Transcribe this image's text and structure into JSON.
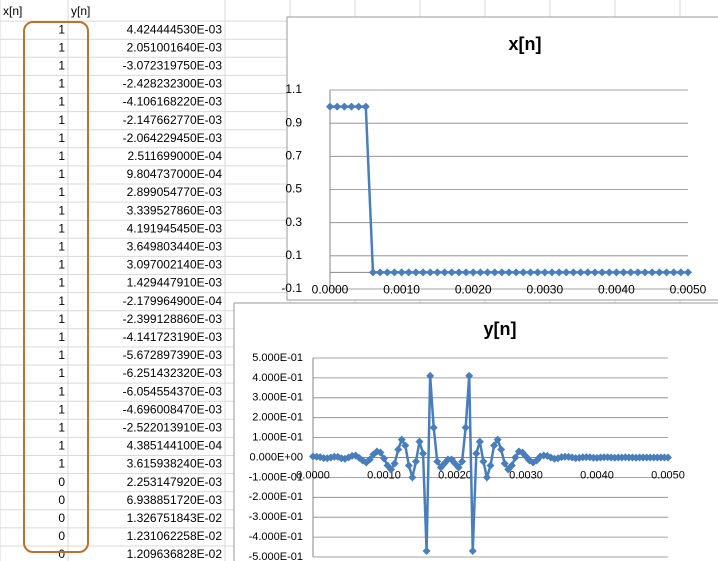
{
  "sheet": {
    "header": [
      "x[n]",
      "y[n]"
    ],
    "rows": [
      [
        "1",
        "4.424444530E-03"
      ],
      [
        "1",
        "2.051001640E-03"
      ],
      [
        "1",
        "-3.072319750E-03"
      ],
      [
        "1",
        "-2.428232300E-03"
      ],
      [
        "1",
        "-4.106168220E-03"
      ],
      [
        "1",
        "-2.147662770E-03"
      ],
      [
        "1",
        "-2.064229450E-03"
      ],
      [
        "1",
        "2.511699000E-04"
      ],
      [
        "1",
        "9.804737000E-04"
      ],
      [
        "1",
        "2.899054770E-03"
      ],
      [
        "1",
        "3.339527860E-03"
      ],
      [
        "1",
        "4.191945450E-03"
      ],
      [
        "1",
        "3.649803440E-03"
      ],
      [
        "1",
        "3.097002140E-03"
      ],
      [
        "1",
        "1.429447910E-03"
      ],
      [
        "1",
        "-2.179964900E-04"
      ],
      [
        "1",
        "-2.399128860E-03"
      ],
      [
        "1",
        "-4.141723190E-03"
      ],
      [
        "1",
        "-5.672897390E-03"
      ],
      [
        "1",
        "-6.251432320E-03"
      ],
      [
        "1",
        "-6.054554370E-03"
      ],
      [
        "1",
        "-4.696008470E-03"
      ],
      [
        "1",
        "-2.522013910E-03"
      ],
      [
        "1",
        "4.385144100E-04"
      ],
      [
        "1",
        "3.615938240E-03"
      ],
      [
        "0",
        "2.253147920E-03"
      ],
      [
        "0",
        "6.938851720E-03"
      ],
      [
        "0",
        "1.326751843E-02"
      ],
      [
        "0",
        "1.231062258E-02"
      ],
      [
        "0",
        "1.209636828E-02"
      ]
    ]
  },
  "chart_data": [
    {
      "type": "line",
      "title": "x[n]",
      "marker": "diamond",
      "grid": true,
      "x": [
        0,
        0.0001,
        0.0002,
        0.0003,
        0.0004,
        0.0005,
        0.0006,
        0.0007,
        0.0008,
        0.0009,
        0.001,
        0.0011,
        0.0012,
        0.0013,
        0.0014,
        0.0015,
        0.0016,
        0.0017,
        0.0018,
        0.0019,
        0.002,
        0.0021,
        0.0022,
        0.0023,
        0.0024,
        0.0025,
        0.0026,
        0.0027,
        0.0028,
        0.0029,
        0.003,
        0.0031,
        0.0032,
        0.0033,
        0.0034,
        0.0035,
        0.0036,
        0.0037,
        0.0038,
        0.0039,
        0.004,
        0.0041,
        0.0042,
        0.0043,
        0.0044,
        0.0045,
        0.0046,
        0.0047,
        0.0048,
        0.0049,
        0.005
      ],
      "series": [
        {
          "color": "#4a7ebb",
          "values": [
            1,
            1,
            1,
            1,
            1,
            1,
            0,
            0,
            0,
            0,
            0,
            0,
            0,
            0,
            0,
            0,
            0,
            0,
            0,
            0,
            0,
            0,
            0,
            0,
            0,
            0,
            0,
            0,
            0,
            0,
            0,
            0,
            0,
            0,
            0,
            0,
            0,
            0,
            0,
            0,
            0,
            0,
            0,
            0,
            0,
            0,
            0,
            0,
            0,
            0,
            0
          ]
        }
      ],
      "xlim": [
        0,
        0.005
      ],
      "ylim": [
        -0.1,
        1.1
      ],
      "xticks": [
        {
          "value": 0,
          "label": "0.0000"
        },
        {
          "value": 0.001,
          "label": "0.0010"
        },
        {
          "value": 0.002,
          "label": "0.0020"
        },
        {
          "value": 0.003,
          "label": "0.0030"
        },
        {
          "value": 0.004,
          "label": "0.0040"
        },
        {
          "value": 0.005,
          "label": "0.0050"
        }
      ],
      "yticks": [
        -0.1,
        0.1,
        0.3,
        0.5,
        0.7,
        0.9,
        1.1
      ]
    },
    {
      "type": "line",
      "title": "y[n]",
      "marker": "diamond",
      "grid": true,
      "x": [
        0,
        5e-05,
        0.0001,
        0.00015,
        0.0002,
        0.00025,
        0.0003,
        0.00035,
        0.0004,
        0.00045,
        0.0005,
        0.00055,
        0.0006,
        0.00065,
        0.0007,
        0.00075,
        0.0008,
        0.00085,
        0.0009,
        0.00095,
        0.001,
        0.00105,
        0.0011,
        0.00115,
        0.0012,
        0.00125,
        0.0013,
        0.00135,
        0.0014,
        0.00145,
        0.0015,
        0.00155,
        0.0016,
        0.00165,
        0.0017,
        0.00175,
        0.0018,
        0.00185,
        0.0019,
        0.00195,
        0.002,
        0.00205,
        0.0021,
        0.00215,
        0.0022,
        0.00225,
        0.0023,
        0.00235,
        0.0024,
        0.00245,
        0.0025,
        0.00255,
        0.0026,
        0.00265,
        0.0027,
        0.00275,
        0.0028,
        0.00285,
        0.0029,
        0.00295,
        0.003,
        0.00305,
        0.0031,
        0.00315,
        0.0032,
        0.00325,
        0.0033,
        0.00335,
        0.0034,
        0.00345,
        0.0035,
        0.00355,
        0.0036,
        0.00365,
        0.0037,
        0.00375,
        0.0038,
        0.00385,
        0.0039,
        0.00395,
        0.004,
        0.00405,
        0.0041,
        0.00415,
        0.0042,
        0.00425,
        0.0043,
        0.00435,
        0.0044,
        0.00445,
        0.0045,
        0.00455,
        0.0046,
        0.00465,
        0.0047,
        0.00475,
        0.0048,
        0.00485,
        0.0049,
        0.00495,
        0.005
      ],
      "series": [
        {
          "color": "#4a7ebb",
          "values": [
            0.005,
            0.004,
            0.002,
            -0.003,
            -0.004,
            0,
            0.004,
            0.003,
            -0.004,
            -0.006,
            0,
            0.008,
            0.01,
            -0.002,
            -0.015,
            -0.025,
            -0.01,
            0.015,
            0.03,
            0.025,
            -0.005,
            -0.04,
            -0.06,
            -0.03,
            0.04,
            0.09,
            0.06,
            -0.04,
            -0.1,
            -0.02,
            0.08,
            0.02,
            -0.47,
            0.41,
            0.15,
            -0.02,
            -0.05,
            -0.03,
            -0.01,
            -0.01,
            -0.03,
            -0.05,
            -0.02,
            0.15,
            0.41,
            -0.47,
            0.02,
            0.08,
            -0.02,
            -0.1,
            -0.04,
            0.06,
            0.09,
            0.04,
            -0.03,
            -0.06,
            -0.04,
            0,
            0.03,
            0.025,
            0.005,
            -0.015,
            -0.025,
            -0.015,
            0.005,
            0.01,
            0.008,
            0,
            -0.006,
            -0.004,
            0.002,
            0.004,
            0.003,
            0,
            -0.003,
            -0.002,
            0.001,
            0.002,
            0.001,
            -0.001,
            -0.002,
            0,
            0.001,
            0.001,
            0,
            -0.001,
            0,
            0,
            0.001,
            0,
            0,
            -0.001,
            0,
            0,
            0,
            0,
            0,
            0,
            0,
            0,
            0
          ]
        }
      ],
      "xlim": [
        0,
        0.005
      ],
      "ylim": [
        -0.5,
        0.5
      ],
      "xticks": [
        {
          "value": 0,
          "label": "0.0000"
        },
        {
          "value": 0.001,
          "label": "0.0010"
        },
        {
          "value": 0.002,
          "label": "0.0020"
        },
        {
          "value": 0.003,
          "label": "0.0030"
        },
        {
          "value": 0.004,
          "label": "0.0040"
        },
        {
          "value": 0.005,
          "label": "0.0050"
        }
      ],
      "yticks": [
        {
          "value": -0.5,
          "label": "-5.000E-01"
        },
        {
          "value": -0.4,
          "label": "-4.000E-01"
        },
        {
          "value": -0.3,
          "label": "-3.000E-01"
        },
        {
          "value": -0.2,
          "label": "-2.000E-01"
        },
        {
          "value": -0.1,
          "label": "-1.000E-01"
        },
        {
          "value": 0,
          "label": "0.000E+00"
        },
        {
          "value": 0.1,
          "label": "1.000E-01"
        },
        {
          "value": 0.2,
          "label": "2.000E-01"
        },
        {
          "value": 0.3,
          "label": "3.000E-01"
        },
        {
          "value": 0.4,
          "label": "4.000E-01"
        },
        {
          "value": 0.5,
          "label": "5.000E-01"
        }
      ]
    }
  ]
}
